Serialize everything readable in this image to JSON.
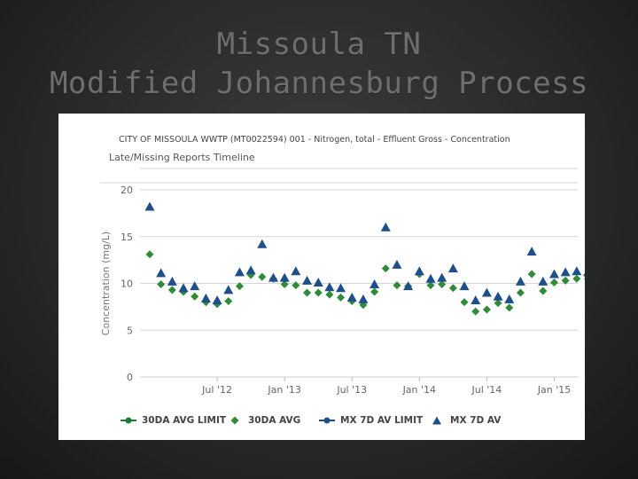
{
  "slide": {
    "title_line1": "Missoula TN",
    "title_line2": "Modified Johannesburg Process"
  },
  "chart_data": {
    "type": "scatter",
    "title": "CITY OF MISSOULA WWTP (MT0022594) 001 - Nitrogen, total - Effluent Gross - Concentration",
    "subtitle": "Late/Missing Reports Timeline",
    "xlabel": "",
    "ylabel": "Concentration (mg/L)",
    "ylim": [
      0,
      20
    ],
    "yticks": [
      0,
      5,
      10,
      15,
      20
    ],
    "xticks": [
      "Jul '12",
      "Jan '13",
      "Jul '13",
      "Jan '14",
      "Jul '14",
      "Jan '15"
    ],
    "x": [
      "Jan '12",
      "Feb '12",
      "Mar '12",
      "Apr '12",
      "May '12",
      "Jun '12",
      "Jul '12",
      "Aug '12",
      "Sep '12",
      "Oct '12",
      "Nov '12",
      "Dec '12",
      "Jan '13",
      "Feb '13",
      "Mar '13",
      "Apr '13",
      "May '13",
      "Jun '13",
      "Jul '13",
      "Aug '13",
      "Sep '13",
      "Oct '13",
      "Nov '13",
      "Dec '13",
      "Jan '14",
      "Feb '14",
      "Mar '14",
      "Apr '14",
      "May '14",
      "Jun '14",
      "Jul '14",
      "Aug '14",
      "Sep '14",
      "Oct '14",
      "Nov '14",
      "Dec '14",
      "Jan '15",
      "Feb '15",
      "Mar '15",
      "Apr '15"
    ],
    "series": [
      {
        "name": "30DA AVG LIMIT",
        "marker": "circle",
        "color": "#1e7a35",
        "values": []
      },
      {
        "name": "30DA AVG",
        "marker": "diamond",
        "color": "#2f8a3a",
        "values": [
          13.1,
          9.9,
          9.3,
          9.1,
          8.6,
          8.0,
          7.8,
          8.1,
          9.7,
          10.9,
          10.7,
          10.5,
          9.9,
          9.8,
          9.0,
          9.0,
          8.8,
          8.5,
          8.1,
          7.7,
          9.1,
          11.6,
          9.8,
          9.7,
          11.0,
          9.8,
          9.9,
          9.5,
          8.0,
          7.0,
          7.2,
          7.9,
          7.4,
          9.0,
          11.0,
          9.2,
          10.1,
          10.3,
          10.5,
          10.5
        ]
      },
      {
        "name": "MX 7D AV LIMIT",
        "marker": "circle",
        "color": "#1f4e8c",
        "values": []
      },
      {
        "name": "MX 7D AV",
        "marker": "triangle",
        "color": "#1f4e8c",
        "values": [
          18.2,
          11.1,
          10.2,
          9.5,
          9.7,
          8.4,
          8.2,
          9.3,
          11.2,
          11.4,
          14.2,
          10.6,
          10.6,
          11.3,
          10.3,
          10.1,
          9.6,
          9.5,
          8.5,
          8.3,
          9.9,
          16.0,
          12.0,
          9.7,
          11.3,
          10.5,
          10.6,
          11.6,
          9.7,
          8.2,
          9.0,
          8.6,
          8.3,
          10.2,
          13.4,
          10.2,
          11.0,
          11.2,
          11.3,
          11.2
        ]
      }
    ],
    "legend_position": "bottom"
  }
}
